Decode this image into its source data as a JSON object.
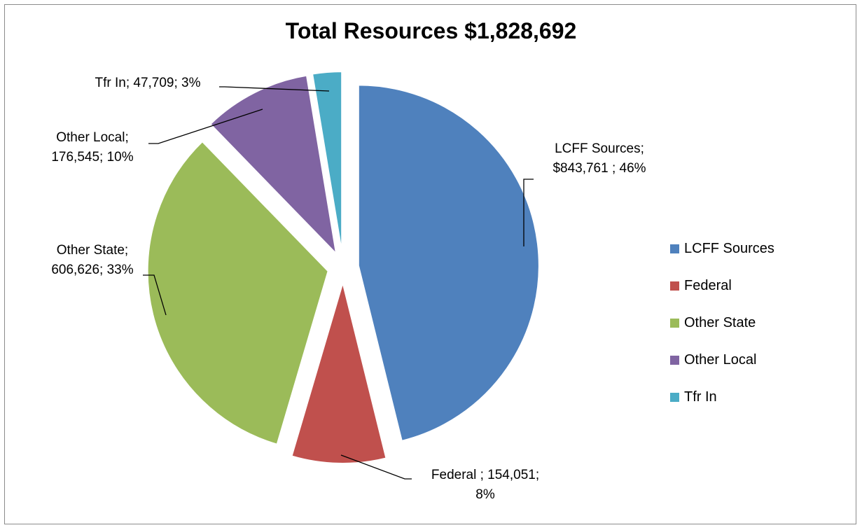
{
  "chart_data": {
    "type": "pie",
    "title": "Total Resources $1,828,692",
    "slices": [
      {
        "name": "LCFF Sources",
        "value": 843761,
        "percent": 46,
        "color": "#4F81BD",
        "label_lines": [
          "LCFF Sources;",
          "$843,761 ; 46%"
        ]
      },
      {
        "name": "Federal",
        "value": 154051,
        "percent": 8,
        "color": "#C0504D",
        "label_lines": [
          "Federal ; 154,051;",
          "8%"
        ]
      },
      {
        "name": "Other State",
        "value": 606626,
        "percent": 33,
        "color": "#9BBB59",
        "label_lines": [
          "Other State;",
          "606,626; 33%"
        ]
      },
      {
        "name": "Other Local",
        "value": 176545,
        "percent": 10,
        "color": "#8064A2",
        "label_lines": [
          "Other Local;",
          "176,545; 10%"
        ]
      },
      {
        "name": "Tfr In",
        "value": 47709,
        "percent": 3,
        "color": "#4BACC6",
        "label_lines": [
          "Tfr In; 47,709; 3%"
        ]
      }
    ],
    "legend_position": "right"
  }
}
